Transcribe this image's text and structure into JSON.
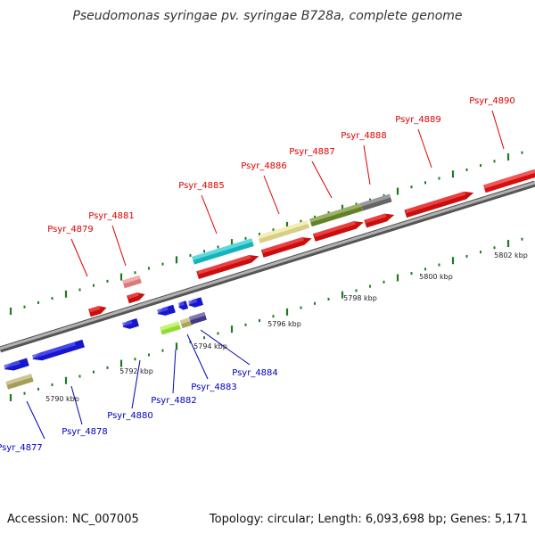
{
  "title": "Pseudomonas syringae pv. syringae B728a, complete genome",
  "footer": {
    "accession": "Accession: NC_007005",
    "topology": "Topology: circular; Length: 6,093,698 bp; Genes: 5,171"
  },
  "colors": {
    "forward_label": "#dd0000",
    "reverse_label": "#0000bb",
    "backbone": "#8a8a8a",
    "tick": "#1f7a1f"
  },
  "scale_labels": [
    "5790 kbp",
    "5792 kbp",
    "5794 kbp",
    "5796 kbp",
    "5798 kbp",
    "5800 kbp",
    "5802 kbp"
  ],
  "genes": [
    {
      "id": "Psyr_4877",
      "strand": "reverse",
      "color": "#b7b064"
    },
    {
      "id": "Psyr_4878",
      "strand": "reverse",
      "color": "#1a1aee"
    },
    {
      "id": "Psyr_4879",
      "strand": "forward",
      "color": "#ee1111"
    },
    {
      "id": "Psyr_4880",
      "strand": "reverse",
      "color": "#1a1aee"
    },
    {
      "id": "Psyr_4881",
      "strand": "forward",
      "color": "#ef8a8a"
    },
    {
      "id": "Psyr_4882",
      "strand": "reverse",
      "color": "#a6f23a"
    },
    {
      "id": "Psyr_4883",
      "strand": "reverse",
      "color": "#bdb56a"
    },
    {
      "id": "Psyr_4884",
      "strand": "reverse",
      "color": "#4a3f96"
    },
    {
      "id": "Psyr_4885",
      "strand": "forward",
      "color": "#18c8cf"
    },
    {
      "id": "Psyr_4886",
      "strand": "forward",
      "color": "#efe695"
    },
    {
      "id": "Psyr_4887",
      "strand": "forward",
      "color": "#6f8f2a"
    },
    {
      "id": "Psyr_4888",
      "strand": "forward",
      "color": "#707070"
    },
    {
      "id": "Psyr_4889",
      "strand": "forward",
      "color": "#ee1111"
    },
    {
      "id": "Psyr_4890",
      "strand": "forward",
      "color": "#ee1111"
    }
  ],
  "unlabeled_features": [
    {
      "strand": "forward",
      "color": "#ee1111"
    },
    {
      "strand": "forward",
      "color": "#ee1111"
    },
    {
      "strand": "forward",
      "color": "#ee1111"
    },
    {
      "strand": "forward",
      "color": "#ee1111"
    },
    {
      "strand": "reverse",
      "color": "#1a1aee"
    },
    {
      "strand": "reverse",
      "color": "#1a1aee"
    },
    {
      "strand": "reverse",
      "color": "#1a1aee"
    },
    {
      "strand": "reverse",
      "color": "#1a1aee"
    }
  ]
}
